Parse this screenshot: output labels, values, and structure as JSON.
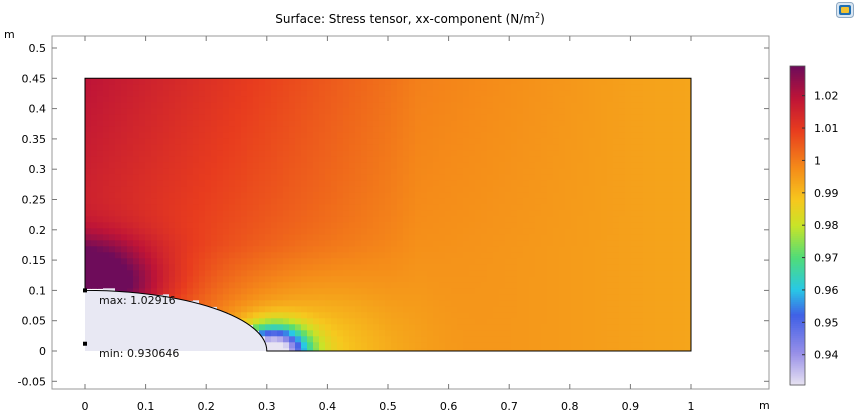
{
  "title_main": "Surface: Stress tensor, xx-component (N/m",
  "title_sup": "2",
  "title_close": ")",
  "y_unit": "m",
  "x_unit": "m",
  "annotations": {
    "max_label": "max: 1.02916",
    "min_label": "min: 0.930646"
  },
  "corner_icon": "window-toggle-icon",
  "chart_data": {
    "type": "heatmap",
    "quantity": "Stress tensor, xx-component",
    "unit": "N/m^2",
    "domain": {
      "x_range": [
        0,
        1
      ],
      "y_range": [
        0,
        0.45
      ],
      "hole": {
        "shape": "quarter-ellipse",
        "semi_axis_x": 0.3,
        "semi_axis_y": 0.1
      }
    },
    "xlim": [
      -0.1,
      1.12
    ],
    "ylim": [
      -0.06,
      0.52
    ],
    "x_ticks": [
      0,
      0.1,
      0.2,
      0.3,
      0.4,
      0.5,
      0.6,
      0.7,
      0.8,
      0.9,
      1
    ],
    "x_tick_labels": [
      "0",
      "0.1",
      "0.2",
      "0.3",
      "0.4",
      "0.5",
      "0.6",
      "0.7",
      "0.8",
      "0.9",
      "1"
    ],
    "y_ticks": [
      -0.05,
      0,
      0.05,
      0.1,
      0.15,
      0.2,
      0.25,
      0.3,
      0.35,
      0.4,
      0.45,
      0.5
    ],
    "y_tick_labels": [
      "-0.05",
      "0",
      "0.05",
      "0.1",
      "0.15",
      "0.2",
      "0.25",
      "0.3",
      "0.35",
      "0.4",
      "0.45",
      "0.5"
    ],
    "max": {
      "value": 1.02916,
      "x": 0,
      "y": 0.1
    },
    "min": {
      "value": 0.930646,
      "x": 0,
      "y": 0.012
    },
    "colorbar": {
      "colormap": "Rainbow",
      "range": [
        0.930646,
        1.02916
      ],
      "ticks": [
        0.94,
        0.95,
        0.96,
        0.97,
        0.98,
        0.99,
        1,
        1.01,
        1.02
      ],
      "tick_labels": [
        "0.94",
        "0.95",
        "0.96",
        "0.97",
        "0.98",
        "0.99",
        "1",
        "1.01",
        "1.02"
      ]
    }
  }
}
